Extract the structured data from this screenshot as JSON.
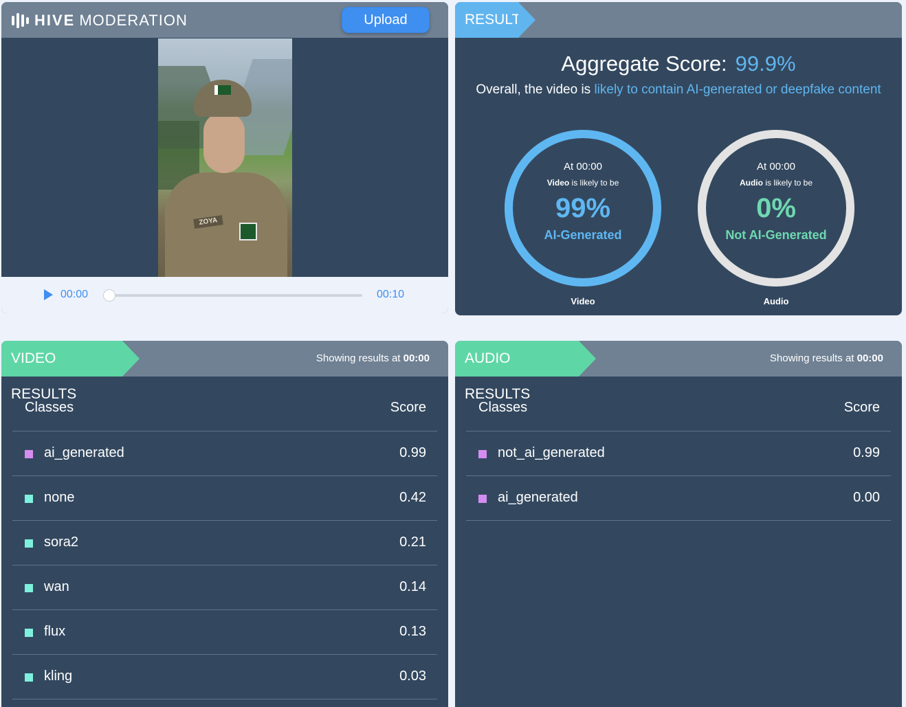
{
  "header": {
    "logo_bold": "HIVE",
    "logo_light": "MODERATION",
    "upload_label": "Upload"
  },
  "player": {
    "current_time": "00:00",
    "end_time": "00:10",
    "progress": 0,
    "name_tag": "ZOYA"
  },
  "result": {
    "tag": "RESULT",
    "aggregate_label": "Aggregate Score:",
    "aggregate_value": "99.9%",
    "desc_prefix": "Overall, the video is ",
    "desc_highlight": "likely to contain AI-generated or deepfake content",
    "video_ring": {
      "at": "At 00:00",
      "kind": "Video",
      "likely": " is likely to be",
      "percent": "99%",
      "label": "AI-Generated",
      "caption": "Video",
      "color": "#5fb7f2"
    },
    "audio_ring": {
      "at": "At 00:00",
      "kind": "Audio",
      "likely": " is likely to be",
      "percent": "0%",
      "label": "Not AI-Generated",
      "caption": "Audio",
      "color": "#6fd8b0"
    }
  },
  "video_results": {
    "tag": "VIDEO RESULTS",
    "showing_prefix": "Showing results at ",
    "showing_time": "00:00",
    "col_classes": "Classes",
    "col_score": "Score",
    "rows": [
      {
        "name": "ai_generated",
        "score": "0.99",
        "color": "#d58cf0"
      },
      {
        "name": "none",
        "score": "0.42",
        "color": "#7ef0de"
      },
      {
        "name": "sora2",
        "score": "0.21",
        "color": "#7ef0de"
      },
      {
        "name": "wan",
        "score": "0.14",
        "color": "#7ef0de"
      },
      {
        "name": "flux",
        "score": "0.13",
        "color": "#7ef0de"
      },
      {
        "name": "kling",
        "score": "0.03",
        "color": "#7ef0de"
      }
    ]
  },
  "audio_results": {
    "tag": "AUDIO RESULTS",
    "showing_prefix": "Showing results at ",
    "showing_time": "00:00",
    "col_classes": "Classes",
    "col_score": "Score",
    "rows": [
      {
        "name": "not_ai_generated",
        "score": "0.99",
        "color": "#d58cf0"
      },
      {
        "name": "ai_generated",
        "score": "0.00",
        "color": "#d58cf0"
      }
    ]
  }
}
